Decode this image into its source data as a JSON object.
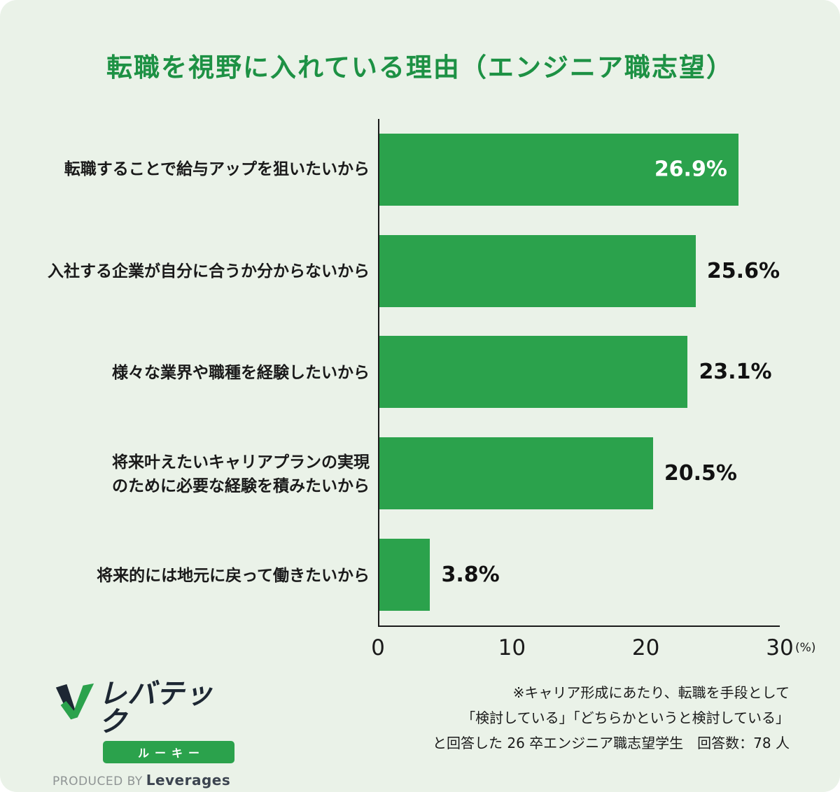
{
  "page": {
    "title": "転職を視野に入れている理由（エンジニア職志望）"
  },
  "chart_data": {
    "type": "bar",
    "orientation": "horizontal",
    "title": "転職を視野に入れている理由（エンジニア職志望）",
    "categories": [
      "転職することで給与アップを狙いたいから",
      "入社する企業が自分に合うか分からないから",
      "様々な業界や職種を経験したいから",
      "将来叶えたいキャリアプランの実現\nのために必要な経験を積みたいから",
      "将来的には地元に戻って働きたいから"
    ],
    "values": [
      26.9,
      25.6,
      23.1,
      20.5,
      3.8
    ],
    "value_labels": [
      "26.9%",
      "25.6%",
      "23.1%",
      "20.5%",
      "3.8%"
    ],
    "value_label_inside": [
      true,
      false,
      false,
      false,
      false
    ],
    "xlim": [
      0,
      30
    ],
    "xticks": [
      0,
      10,
      20,
      30
    ],
    "x_unit": "(%)",
    "xlabel": "",
    "ylabel": "",
    "grid": false,
    "legend": false,
    "bar_color": "#2ba24c"
  },
  "footer": {
    "note_lines": [
      "※キャリア形成にあたり、転職を手段として",
      "「検討している」「どちらかというと検討している」",
      "と回答した 26 卒エンジニア職志望学生　回答数：78 人"
    ],
    "logo": {
      "brand": "レバテック",
      "sub_badge": "ルーキー",
      "produced_by": "PRODUCED BY",
      "company": "Leverages"
    }
  },
  "colors": {
    "background": "#eaf2e8",
    "bar_green": "#2ba24c",
    "title_green": "#1d9144",
    "text_dark": "#1a1a1a",
    "logo_navy": "#1d2733"
  }
}
